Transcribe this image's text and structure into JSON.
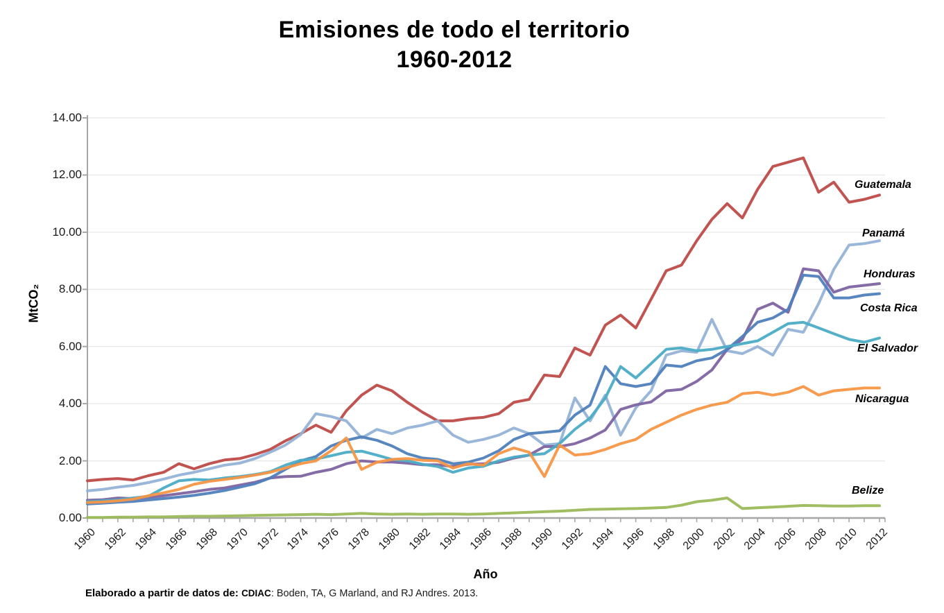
{
  "title": {
    "line1": "Emisiones de todo el territorio",
    "line2": "1960-2012"
  },
  "y_axis": {
    "title": "MtCO₂",
    "tick_labels": [
      "0.00",
      "2.00",
      "4.00",
      "6.00",
      "8.00",
      "10.00",
      "12.00",
      "14.00"
    ],
    "min": 0,
    "max": 14,
    "step": 2
  },
  "x_axis": {
    "title": "Año",
    "tick_labels": [
      "1960",
      "1962",
      "1964",
      "1966",
      "1968",
      "1970",
      "1972",
      "1974",
      "1976",
      "1978",
      "1980",
      "1982",
      "1984",
      "1986",
      "1988",
      "1990",
      "1992",
      "1994",
      "1996",
      "1998",
      "2000",
      "2002",
      "2004",
      "2006",
      "2008",
      "2010",
      "2012"
    ]
  },
  "source_note": {
    "lead": "Elaborado a partir de datos de:",
    "acronym": "CDIAC",
    "rest": ": Boden, TA, G Marland, and RJ Andres. 2013."
  },
  "chart_data": {
    "type": "line",
    "title": "Emisiones de todo el territorio 1960-2012",
    "xlabel": "Año",
    "ylabel": "MtCO₂",
    "xlim": [
      1960,
      2012
    ],
    "ylim": [
      0,
      14
    ],
    "grid": "horizontal",
    "legend": "direct-labels-right",
    "x": [
      1960,
      1961,
      1962,
      1963,
      1964,
      1965,
      1966,
      1967,
      1968,
      1969,
      1970,
      1971,
      1972,
      1973,
      1974,
      1975,
      1976,
      1977,
      1978,
      1979,
      1980,
      1981,
      1982,
      1983,
      1984,
      1985,
      1986,
      1987,
      1988,
      1989,
      1990,
      1991,
      1992,
      1993,
      1994,
      1995,
      1996,
      1997,
      1998,
      1999,
      2000,
      2001,
      2002,
      2003,
      2004,
      2005,
      2006,
      2007,
      2008,
      2009,
      2010,
      2011,
      2012
    ],
    "series": [
      {
        "name": "Guatemala",
        "color": "#BE4B48",
        "values": [
          1.3,
          1.35,
          1.38,
          1.33,
          1.48,
          1.6,
          1.9,
          1.72,
          1.9,
          2.03,
          2.08,
          2.22,
          2.4,
          2.7,
          2.95,
          3.25,
          3.0,
          3.75,
          4.3,
          4.65,
          4.45,
          4.05,
          3.7,
          3.4,
          3.4,
          3.48,
          3.52,
          3.65,
          4.05,
          4.15,
          5.0,
          4.95,
          5.95,
          5.7,
          6.75,
          7.1,
          6.65,
          7.65,
          8.65,
          8.85,
          9.7,
          10.45,
          11.0,
          10.5,
          11.5,
          12.3,
          12.45,
          12.6,
          11.4,
          11.75,
          11.05,
          11.15,
          11.3
        ]
      },
      {
        "name": "Panamá",
        "color": "#95B3D7",
        "values": [
          0.95,
          1.0,
          1.08,
          1.14,
          1.24,
          1.36,
          1.5,
          1.6,
          1.72,
          1.85,
          1.92,
          2.08,
          2.3,
          2.55,
          2.92,
          3.65,
          3.55,
          3.4,
          2.8,
          3.1,
          2.95,
          3.15,
          3.25,
          3.4,
          2.9,
          2.65,
          2.75,
          2.9,
          3.15,
          2.95,
          2.55,
          2.6,
          4.2,
          3.4,
          4.3,
          2.9,
          3.85,
          4.45,
          5.7,
          5.85,
          5.8,
          6.95,
          5.85,
          5.75,
          6.0,
          5.7,
          6.6,
          6.5,
          7.5,
          8.7,
          9.55,
          9.6,
          9.7
        ]
      },
      {
        "name": "Honduras",
        "color": "#8064A2",
        "values": [
          0.62,
          0.64,
          0.7,
          0.68,
          0.72,
          0.78,
          0.85,
          0.92,
          1.0,
          1.05,
          1.15,
          1.25,
          1.4,
          1.45,
          1.46,
          1.6,
          1.7,
          1.9,
          2.0,
          1.96,
          1.96,
          1.92,
          1.86,
          1.86,
          1.8,
          1.88,
          1.9,
          1.95,
          2.1,
          2.2,
          2.5,
          2.5,
          2.6,
          2.8,
          3.08,
          3.8,
          3.96,
          4.06,
          4.45,
          4.5,
          4.78,
          5.18,
          5.9,
          6.25,
          7.3,
          7.52,
          7.2,
          8.72,
          8.65,
          7.9,
          8.08,
          8.14,
          8.2
        ]
      },
      {
        "name": "Costa Rica",
        "color": "#4F81BD",
        "values": [
          0.49,
          0.52,
          0.55,
          0.58,
          0.63,
          0.68,
          0.73,
          0.79,
          0.87,
          0.96,
          1.08,
          1.2,
          1.4,
          1.7,
          2.0,
          2.15,
          2.52,
          2.72,
          2.84,
          2.72,
          2.52,
          2.25,
          2.1,
          2.05,
          1.9,
          1.95,
          2.1,
          2.35,
          2.75,
          2.95,
          3.0,
          3.05,
          3.6,
          3.95,
          5.3,
          4.7,
          4.6,
          4.7,
          5.35,
          5.3,
          5.5,
          5.6,
          5.9,
          6.35,
          6.85,
          7.0,
          7.3,
          8.5,
          8.45,
          7.7,
          7.7,
          7.8,
          7.85
        ]
      },
      {
        "name": "El Salvador",
        "color": "#4BACC6",
        "values": [
          0.57,
          0.6,
          0.63,
          0.7,
          0.76,
          1.05,
          1.3,
          1.35,
          1.33,
          1.4,
          1.45,
          1.52,
          1.62,
          1.85,
          2.02,
          2.06,
          2.18,
          2.3,
          2.34,
          2.2,
          2.05,
          2.0,
          1.88,
          1.8,
          1.6,
          1.75,
          1.81,
          2.0,
          2.13,
          2.2,
          2.25,
          2.6,
          3.1,
          3.5,
          4.2,
          5.3,
          4.9,
          5.4,
          5.9,
          5.95,
          5.85,
          5.9,
          6.0,
          6.1,
          6.2,
          6.5,
          6.8,
          6.85,
          6.65,
          6.45,
          6.25,
          6.15,
          6.3
        ]
      },
      {
        "name": "Nicaragua",
        "color": "#F79646",
        "values": [
          0.54,
          0.56,
          0.6,
          0.66,
          0.78,
          0.88,
          1.0,
          1.18,
          1.28,
          1.35,
          1.42,
          1.5,
          1.6,
          1.75,
          1.9,
          2.0,
          2.35,
          2.8,
          1.7,
          1.95,
          2.05,
          2.08,
          2.02,
          2.0,
          1.75,
          1.9,
          1.85,
          2.25,
          2.45,
          2.3,
          1.45,
          2.55,
          2.2,
          2.25,
          2.4,
          2.6,
          2.75,
          3.1,
          3.35,
          3.6,
          3.8,
          3.95,
          4.05,
          4.35,
          4.4,
          4.3,
          4.4,
          4.6,
          4.3,
          4.45,
          4.5,
          4.55,
          4.55
        ]
      },
      {
        "name": "Belize",
        "color": "#9BBB59",
        "values": [
          0.02,
          0.02,
          0.03,
          0.03,
          0.04,
          0.04,
          0.05,
          0.06,
          0.06,
          0.07,
          0.08,
          0.09,
          0.1,
          0.11,
          0.12,
          0.13,
          0.12,
          0.14,
          0.16,
          0.14,
          0.13,
          0.14,
          0.13,
          0.14,
          0.14,
          0.13,
          0.14,
          0.16,
          0.18,
          0.2,
          0.22,
          0.24,
          0.27,
          0.3,
          0.31,
          0.32,
          0.33,
          0.35,
          0.37,
          0.45,
          0.57,
          0.62,
          0.7,
          0.33,
          0.36,
          0.38,
          0.41,
          0.44,
          0.43,
          0.42,
          0.42,
          0.43,
          0.43
        ]
      }
    ]
  }
}
